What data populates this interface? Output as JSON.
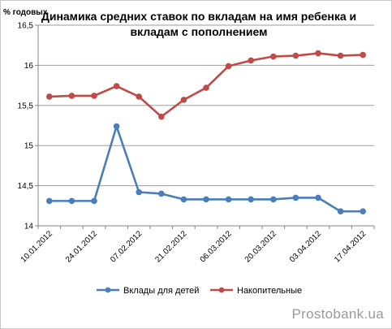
{
  "chart_data": {
    "type": "line",
    "title_lines": [
      "Динамика средних ставок по вкладам на имя ребенка и",
      "вкладам с пополнением"
    ],
    "ylabel": "% годовых",
    "xlabel": "",
    "ylim": [
      14,
      16.5
    ],
    "yticks": [
      {
        "value": 14,
        "label": "14"
      },
      {
        "value": 14.5,
        "label": "14,5"
      },
      {
        "value": 15,
        "label": "15"
      },
      {
        "value": 15.5,
        "label": "15,5"
      },
      {
        "value": 16,
        "label": "16"
      },
      {
        "value": 16.5,
        "label": "16,5"
      }
    ],
    "x_tick_labels": [
      {
        "index": 0,
        "label": "10.01.2012"
      },
      {
        "index": 2,
        "label": "24.01.2012"
      },
      {
        "index": 4,
        "label": "07.02.2012"
      },
      {
        "index": 6,
        "label": "21.02.2012"
      },
      {
        "index": 8,
        "label": "06.03.2012"
      },
      {
        "index": 10,
        "label": "20.03.2012"
      },
      {
        "index": 12,
        "label": "03.04.2012"
      },
      {
        "index": 14,
        "label": "17.04.2012"
      }
    ],
    "point_count": 15,
    "grid": "horizontal",
    "legend": "bottom",
    "series": [
      {
        "name": "Вклады для детей",
        "color": "#4a7ebb",
        "values": [
          14.31,
          14.31,
          14.31,
          15.24,
          14.42,
          14.4,
          14.33,
          14.33,
          14.33,
          14.33,
          14.33,
          14.35,
          14.35,
          14.18,
          14.18
        ]
      },
      {
        "name": "Накопительные",
        "color": "#be4b48",
        "values": [
          15.61,
          15.62,
          15.62,
          15.74,
          15.61,
          15.36,
          15.57,
          15.72,
          15.99,
          16.06,
          16.11,
          16.12,
          16.15,
          16.12,
          16.13
        ]
      }
    ]
  },
  "watermark": "Prostobank.ua"
}
